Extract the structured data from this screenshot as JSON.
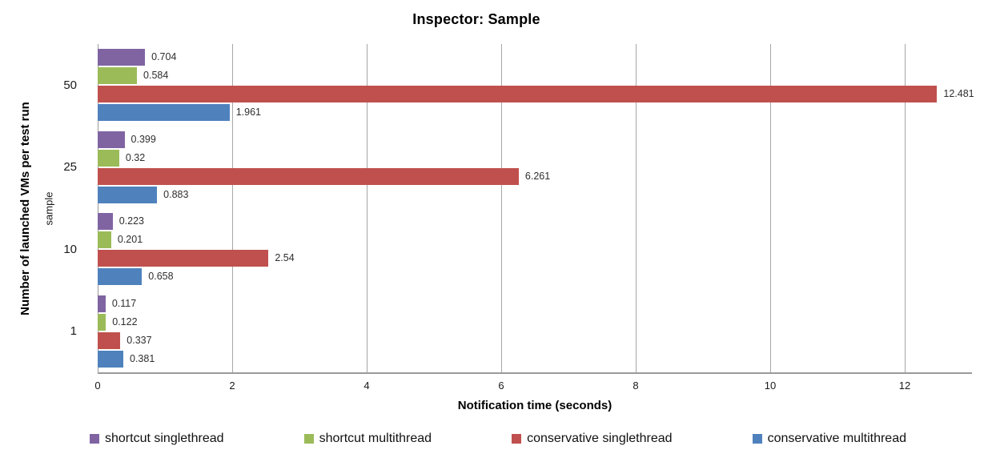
{
  "chart_data": {
    "type": "bar",
    "orientation": "horizontal",
    "title": "Inspector: Sample",
    "xlabel": "Notification time (seconds)",
    "ylabel": "Number of launched VMs per test run",
    "ylabel_secondary": "sample",
    "categories": [
      "50",
      "25",
      "10",
      "1"
    ],
    "series": [
      {
        "name": "shortcut singlethread",
        "color": "#8064A2",
        "values": [
          0.704,
          0.399,
          0.223,
          0.117
        ]
      },
      {
        "name": "shortcut multithread",
        "color": "#9BBB59",
        "values": [
          0.584,
          0.32,
          0.201,
          0.122
        ]
      },
      {
        "name": "conservative singlethread",
        "color": "#C0504D",
        "values": [
          12.481,
          6.261,
          2.54,
          0.337
        ]
      },
      {
        "name": "conservative multithread",
        "color": "#4F81BD",
        "values": [
          1.961,
          0.883,
          0.658,
          0.381
        ]
      }
    ],
    "xlim": [
      0,
      13
    ],
    "xticks": [
      0,
      2,
      4,
      6,
      8,
      10,
      12
    ],
    "grid": "vertical",
    "legend_position": "bottom"
  },
  "colors": {
    "gridline": "#a6a6a6",
    "axis_line": "#9a9a9a",
    "value_label": "#2e2e2e",
    "background": "#ffffff"
  }
}
